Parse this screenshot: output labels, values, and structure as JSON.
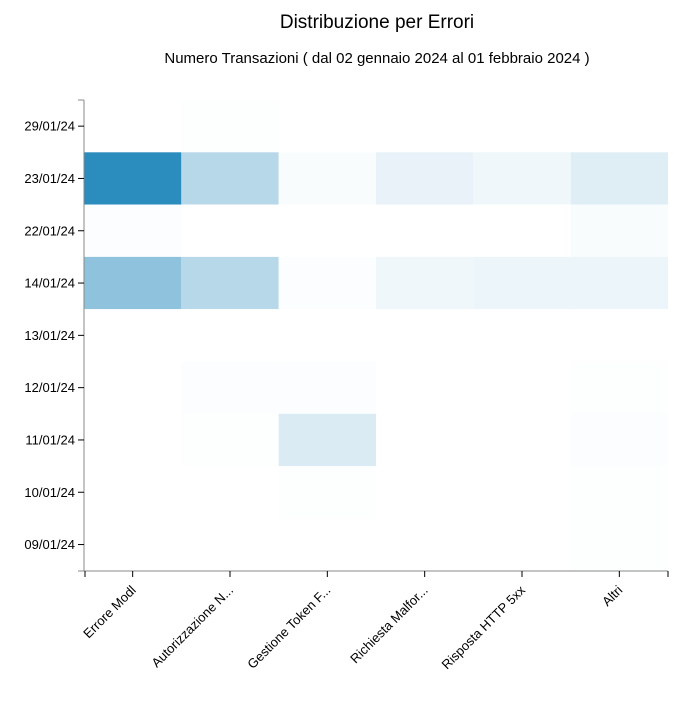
{
  "chart_data": {
    "type": "heatmap",
    "title": "Distribuzione per Errori",
    "subtitle": "Numero Transazioni ( dal 02 gennaio 2024 al 01 febbraio 2024 )",
    "xlabel": "",
    "ylabel": "",
    "x_categories": [
      "Errore Modl",
      "Autorizzazione N...",
      "Gestione Token F...",
      "Richiesta Malfor...",
      "Risposta HTTP 5xx",
      "Altri"
    ],
    "y_categories": [
      "29/01/24",
      "23/01/24",
      "22/01/24",
      "14/01/24",
      "13/01/24",
      "12/01/24",
      "11/01/24",
      "10/01/24",
      "09/01/24"
    ],
    "values": [
      [
        0.0,
        0.01,
        0.0,
        0.0,
        0.0,
        0.0
      ],
      [
        1.0,
        0.34,
        0.03,
        0.11,
        0.07,
        0.15
      ],
      [
        0.02,
        0.0,
        0.0,
        0.0,
        0.0,
        0.03
      ],
      [
        0.53,
        0.34,
        0.02,
        0.07,
        0.09,
        0.09
      ],
      [
        0.0,
        0.0,
        0.0,
        0.0,
        0.0,
        0.0
      ],
      [
        0.0,
        0.02,
        0.02,
        0.0,
        0.0,
        0.01
      ],
      [
        0.0,
        0.01,
        0.17,
        0.0,
        0.0,
        0.02
      ],
      [
        0.0,
        0.0,
        0.01,
        0.0,
        0.0,
        0.01
      ],
      [
        0.0,
        0.0,
        0.0,
        0.0,
        0.0,
        0.01
      ]
    ],
    "value_scale": "relative",
    "colormap": [
      "#ffffff",
      "#2b8cbe"
    ],
    "grid": false,
    "legend": "none"
  }
}
